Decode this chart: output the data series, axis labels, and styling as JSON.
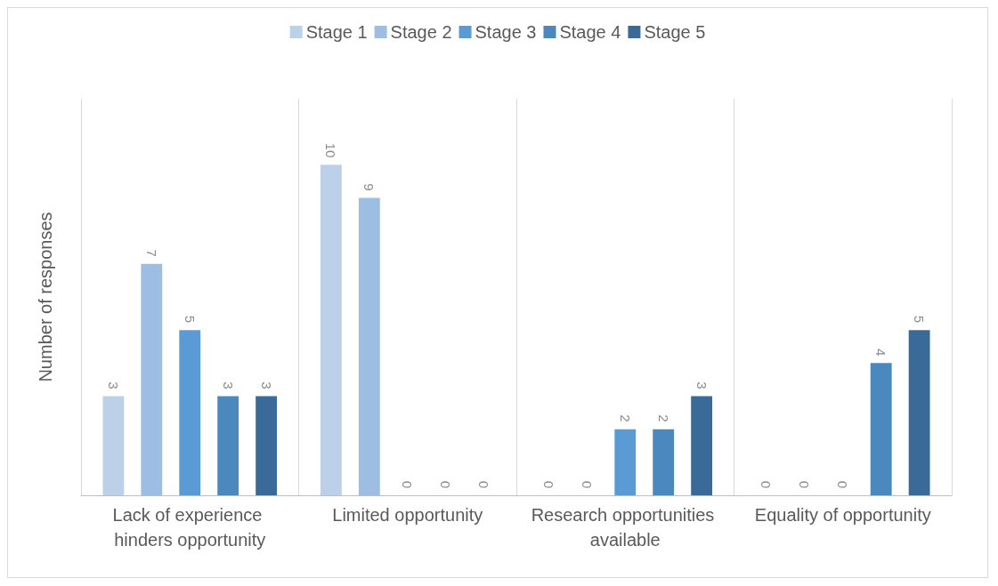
{
  "chart_data": {
    "type": "bar",
    "ylabel": "Number of responses",
    "categories": [
      "Lack of experience hinders opportunity",
      "Limited opportunity",
      "Research opportunities available",
      "Equality of opportunity"
    ],
    "series": [
      {
        "name": "Stage 1",
        "color": "#bdd0e9",
        "values": [
          3,
          10,
          0,
          0
        ]
      },
      {
        "name": "Stage 2",
        "color": "#9dbde3",
        "values": [
          7,
          9,
          0,
          0
        ]
      },
      {
        "name": "Stage 3",
        "color": "#5b9bd5",
        "values": [
          5,
          0,
          2,
          0
        ]
      },
      {
        "name": "Stage 4",
        "color": "#4a88be",
        "values": [
          3,
          0,
          2,
          4
        ]
      },
      {
        "name": "Stage 5",
        "color": "#3a6b98",
        "values": [
          3,
          0,
          3,
          5
        ]
      }
    ],
    "ylim": [
      0,
      12
    ],
    "tick_labels": "x",
    "grid": "x",
    "legend": "top",
    "data_labels": true
  }
}
